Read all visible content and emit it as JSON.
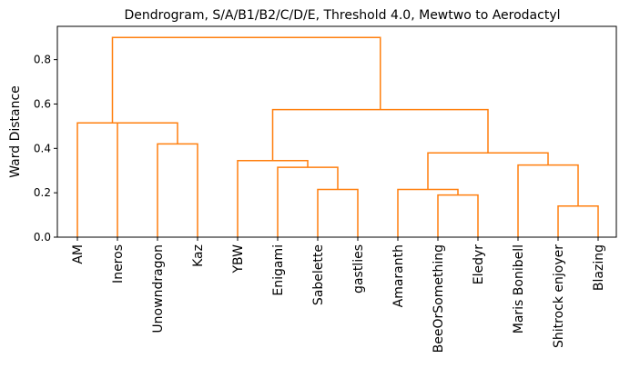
{
  "chart_data": {
    "type": "dendrogram",
    "title": "Dendrogram, S/A/B1/B2/C/D/E, Threshold 4.0, Mewtwo to Aerodactyl",
    "xlabel": "",
    "ylabel": "Ward Distance",
    "ylim": [
      0.0,
      0.95
    ],
    "yticks": [
      "0.0",
      "0.2",
      "0.4",
      "0.6",
      "0.8"
    ],
    "grid": false,
    "link_color": "#ff7f0e",
    "leaves": [
      "AM",
      "Ineros",
      "Unowndragon",
      "Kaz",
      "YBW",
      "Enigami",
      "Sabelette",
      "gastlies",
      "Amaranth",
      "BeeOrSomething",
      "Eledyr",
      "Maris Bonibell",
      "Shitrock enjoyer",
      "Blazing"
    ],
    "merges": [
      {
        "left": "Unowndragon",
        "right": "Kaz",
        "distance": 0.42
      },
      {
        "left": "Ineros",
        "right": "Unowndragon+Kaz",
        "distance": 0.515
      },
      {
        "left": "AM",
        "right": "Ineros+Unowndragon+Kaz",
        "distance": 0.515
      },
      {
        "left": "Sabelette",
        "right": "gastlies",
        "distance": 0.215
      },
      {
        "left": "Enigami",
        "right": "Sabelette+gastlies",
        "distance": 0.315
      },
      {
        "left": "YBW",
        "right": "Enigami+Sabelette+gastlies",
        "distance": 0.345
      },
      {
        "left": "BeeOrSomething",
        "right": "Eledyr",
        "distance": 0.19
      },
      {
        "left": "Amaranth",
        "right": "BeeOrSomething+Eledyr",
        "distance": 0.215
      },
      {
        "left": "Shitrock enjoyer",
        "right": "Blazing",
        "distance": 0.14
      },
      {
        "left": "Maris Bonibell",
        "right": "Shitrock enjoyer+Blazing",
        "distance": 0.325
      },
      {
        "left": "Amaranth+BeeOrSomething+Eledyr",
        "right": "Maris Bonibell+Shitrock enjoyer+Blazing",
        "distance": 0.38
      },
      {
        "left": "YBW+Enigami+Sabelette+gastlies",
        "right": "Amaranth+BeeOrSomething+Eledyr+Maris Bonibell+Shitrock enjoyer+Blazing",
        "distance": 0.575
      },
      {
        "left": "AM+Ineros+Unowndragon+Kaz",
        "right": "YBW+Enigami+Sabelette+gastlies+Amaranth+BeeOrSomething+Eledyr+Maris Bonibell+Shitrock enjoyer+Blazing",
        "distance": 0.9
      }
    ]
  }
}
